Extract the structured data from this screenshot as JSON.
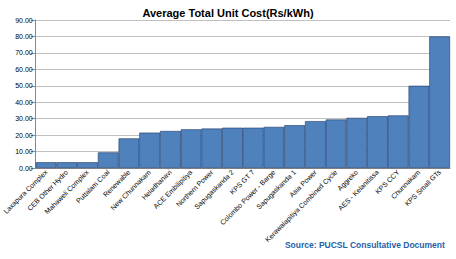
{
  "chart_data": {
    "type": "bar",
    "title": "Average Total Unit Cost(Rs/kWh)",
    "source": "Source: PUCSL Consultative Document",
    "categories": [
      "Laxapura Complex",
      "CEB Other Hydro",
      "Mahaweli Complex",
      "Puttalam Coal",
      "Renewable",
      "New Chunnakam",
      "Heladhanavi",
      "ACE Embilipitiya",
      "Northern Power",
      "Sapugaskanda 2",
      "KPS GT 7",
      "Colombo Power - Barge",
      "Sapugaskanda 1",
      "Asia Power",
      "Kerawalapitiya Combined Cycle",
      "Aggreko",
      "AES - Kelanitissa",
      "KPS CCY",
      "Chunnakam",
      "KPS Small GTs"
    ],
    "values": [
      3.5,
      3.5,
      3.5,
      9.5,
      18,
      21.5,
      22.5,
      23.5,
      24,
      24.5,
      24.5,
      25,
      26,
      28.5,
      29.5,
      30.5,
      31.5,
      32,
      50,
      80
    ],
    "color": "#4f81bd",
    "ylim": [
      0,
      90
    ],
    "yticks": [
      {
        "value": 0,
        "label": "0.00"
      },
      {
        "value": 10,
        "label": "10.00"
      },
      {
        "value": 20,
        "label": "20.00"
      },
      {
        "value": 30,
        "label": "30.00"
      },
      {
        "value": 40,
        "label": "40.00"
      },
      {
        "value": 50,
        "label": "50.00"
      },
      {
        "value": 60,
        "label": "60.00"
      },
      {
        "value": 70,
        "label": "70.00"
      },
      {
        "value": 80,
        "label": "80.00"
      },
      {
        "value": 90,
        "label": "90.00"
      }
    ],
    "grid": true
  }
}
